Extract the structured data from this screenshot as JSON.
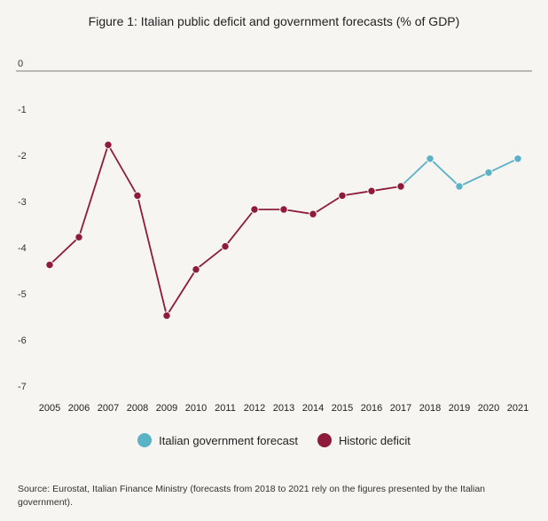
{
  "chart_data": {
    "type": "line",
    "title": "Figure 1: Italian public deficit and government forecasts (% of GDP)",
    "xlabel": "",
    "ylabel": "",
    "ylim": [
      -7,
      0
    ],
    "yticks": [
      0,
      -1,
      -2,
      -3,
      -4,
      -5,
      -6,
      -7
    ],
    "categories": [
      "2005",
      "2006",
      "2007",
      "2008",
      "2009",
      "2010",
      "2011",
      "2012",
      "2013",
      "2014",
      "2015",
      "2016",
      "2017",
      "2018",
      "2019",
      "2020",
      "2021"
    ],
    "grid": "baseline only",
    "legend_position": "bottom",
    "series": [
      {
        "name": "Historic deficit",
        "color": "#8e1b3a",
        "x": [
          "2005",
          "2006",
          "2007",
          "2008",
          "2009",
          "2010",
          "2011",
          "2012",
          "2013",
          "2014",
          "2015",
          "2016",
          "2017"
        ],
        "values": [
          -4.2,
          -3.6,
          -1.6,
          -2.7,
          -5.3,
          -4.3,
          -3.8,
          -3.0,
          -3.0,
          -3.1,
          -2.7,
          -2.6,
          -2.5
        ]
      },
      {
        "name": "Italian government forecast",
        "color": "#5ab2c6",
        "x": [
          "2017",
          "2018",
          "2019",
          "2020",
          "2021"
        ],
        "values": [
          -2.5,
          -1.9,
          -2.5,
          -2.2,
          -1.9
        ]
      }
    ]
  },
  "legend": [
    {
      "label": "Italian government forecast",
      "color": "#5ab2c6"
    },
    {
      "label": "Historic deficit",
      "color": "#8e1b3a"
    }
  ],
  "source_note": "Source: Eurostat, Italian Finance Ministry (forecasts from 2018 to 2021 rely on the figures presented by the Italian government)."
}
